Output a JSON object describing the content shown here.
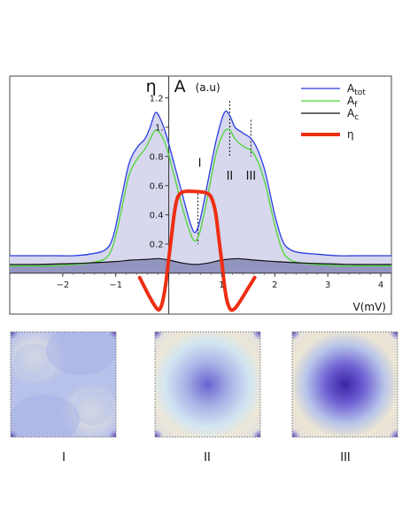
{
  "chart_data": {
    "type": "line",
    "title": "",
    "y_symbols": {
      "eta": "η",
      "A": "A",
      "unit": "(a.u)"
    },
    "xlabel": "V(mV)",
    "xlim": [
      -3.0,
      4.2
    ],
    "ylim": [
      -0.28,
      1.35
    ],
    "x_ticks": [
      -2,
      -1,
      0,
      1,
      2,
      3,
      4
    ],
    "x_tick_labels": [
      "−2",
      "−1",
      "",
      "1",
      "2",
      "3",
      "4"
    ],
    "y_ticks": [
      0.2,
      0.4,
      0.6,
      0.8,
      1.0,
      1.2
    ],
    "y_tick_labels": [
      "0.2",
      "0.4",
      "0.6",
      "0.8",
      "1.",
      "1.2"
    ],
    "legend": {
      "position": "top-right",
      "entries": [
        {
          "label": "A",
          "sub": "tot",
          "color": "#2a3ee0"
        },
        {
          "label": "A",
          "sub": "f",
          "color": "#4ed638"
        },
        {
          "label": "A",
          "sub": "c",
          "color": "#111111"
        },
        {
          "label": "η",
          "sub": "",
          "color": "#ee2e12"
        }
      ]
    },
    "markers": [
      {
        "label": "I",
        "x": 0.55,
        "y_top": 0.57,
        "y_bottom": 0.2
      },
      {
        "label": "II",
        "x": 1.15,
        "y_top": 1.18,
        "y_bottom": 0.8
      },
      {
        "label": "III",
        "x": 1.55,
        "y_top": 1.05,
        "y_bottom": 0.8
      }
    ],
    "series": [
      {
        "name": "A_tot",
        "color": "#2a3ee0",
        "x": [
          -3.0,
          -2.6,
          -2.2,
          -1.8,
          -1.5,
          -1.2,
          -1.05,
          -0.9,
          -0.75,
          -0.6,
          -0.45,
          -0.35,
          -0.25,
          -0.15,
          -0.05,
          0.1,
          0.25,
          0.4,
          0.5,
          0.6,
          0.75,
          0.9,
          1.05,
          1.15,
          1.25,
          1.4,
          1.6,
          1.8,
          2.0,
          2.15,
          2.3,
          2.5,
          2.8,
          3.2,
          3.6,
          4.0,
          4.2
        ],
        "y": [
          0.12,
          0.12,
          0.12,
          0.12,
          0.13,
          0.16,
          0.25,
          0.5,
          0.75,
          0.86,
          0.92,
          1.0,
          1.1,
          1.05,
          0.95,
          0.75,
          0.55,
          0.35,
          0.28,
          0.38,
          0.65,
          0.92,
          1.1,
          1.08,
          1.0,
          0.96,
          0.9,
          0.72,
          0.4,
          0.22,
          0.16,
          0.14,
          0.13,
          0.12,
          0.12,
          0.12,
          0.12
        ]
      },
      {
        "name": "A_f",
        "color": "#4ed638",
        "x": [
          -3.0,
          -2.6,
          -2.2,
          -1.8,
          -1.5,
          -1.2,
          -1.05,
          -0.9,
          -0.75,
          -0.6,
          -0.45,
          -0.35,
          -0.25,
          -0.15,
          -0.05,
          0.1,
          0.25,
          0.4,
          0.5,
          0.6,
          0.75,
          0.9,
          1.05,
          1.15,
          1.25,
          1.4,
          1.6,
          1.8,
          2.0,
          2.15,
          2.3,
          2.5,
          2.8,
          3.2,
          3.6,
          4.0,
          4.2
        ],
        "y": [
          0.05,
          0.05,
          0.05,
          0.06,
          0.07,
          0.1,
          0.19,
          0.42,
          0.67,
          0.78,
          0.85,
          0.92,
          0.98,
          0.95,
          0.87,
          0.67,
          0.46,
          0.28,
          0.22,
          0.3,
          0.56,
          0.83,
          0.97,
          0.98,
          0.92,
          0.87,
          0.82,
          0.64,
          0.33,
          0.15,
          0.09,
          0.07,
          0.06,
          0.05,
          0.05,
          0.05,
          0.05
        ]
      },
      {
        "name": "A_c",
        "color": "#111111",
        "x": [
          -3.0,
          -2.5,
          -2.0,
          -1.5,
          -1.0,
          -0.7,
          -0.4,
          -0.2,
          0.0,
          0.25,
          0.5,
          0.75,
          1.0,
          1.3,
          1.6,
          2.0,
          2.5,
          3.0,
          3.5,
          4.2
        ],
        "y": [
          0.06,
          0.06,
          0.065,
          0.07,
          0.08,
          0.09,
          0.095,
          0.1,
          0.09,
          0.07,
          0.06,
          0.07,
          0.09,
          0.1,
          0.09,
          0.08,
          0.07,
          0.065,
          0.06,
          0.06
        ]
      },
      {
        "name": "η",
        "color": "#ee2e12",
        "x": [
          -0.55,
          -0.45,
          -0.35,
          -0.25,
          -0.18,
          -0.12,
          -0.06,
          0.0,
          0.05,
          0.1,
          0.15,
          0.2,
          0.3,
          0.5,
          0.7,
          0.8,
          0.88,
          0.94,
          1.0,
          1.05,
          1.1,
          1.17,
          1.25,
          1.35,
          1.5,
          1.62
        ],
        "y": [
          -0.03,
          -0.1,
          -0.17,
          -0.23,
          -0.25,
          -0.2,
          -0.08,
          0.1,
          0.25,
          0.4,
          0.5,
          0.54,
          0.56,
          0.56,
          0.55,
          0.52,
          0.42,
          0.25,
          0.08,
          -0.08,
          -0.19,
          -0.25,
          -0.24,
          -0.19,
          -0.1,
          -0.03
        ]
      }
    ]
  },
  "panels": [
    {
      "label": "I"
    },
    {
      "label": "II"
    },
    {
      "label": "III"
    }
  ]
}
